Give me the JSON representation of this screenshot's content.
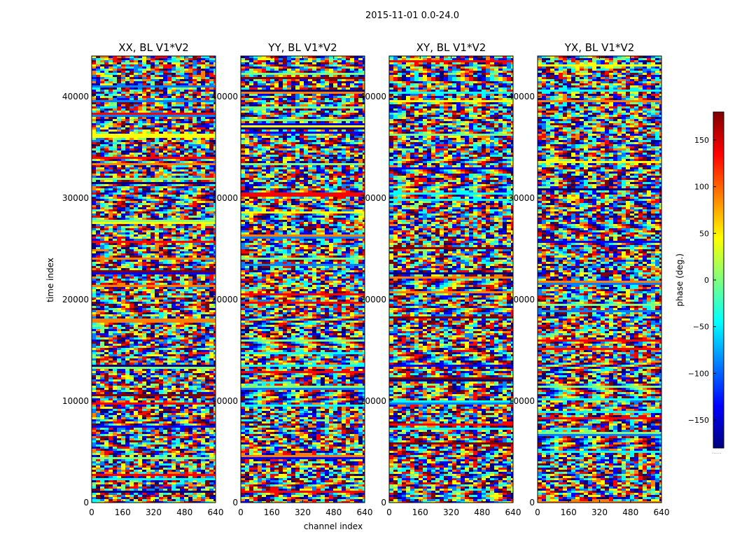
{
  "figure": {
    "suptitle": "2015-11-01 0.0-24.0"
  },
  "chart_data": {
    "type": "heatmap",
    "title": "2015-11-01 0.0-24.0",
    "xlabel": "channel index",
    "ylabel": "time index",
    "xlim": [
      0,
      640
    ],
    "ylim": [
      0,
      44000
    ],
    "x_ticks": [
      0,
      160,
      320,
      480,
      640
    ],
    "x_tick_labels": [
      "0",
      "160",
      "320",
      "480",
      "640"
    ],
    "y_ticks": [
      0,
      10000,
      20000,
      30000,
      40000
    ],
    "y_tick_labels": [
      "0",
      "10000",
      "20000",
      "30000",
      "40000"
    ],
    "panels": [
      {
        "title": "XX, BL V1*V2",
        "y_tick_labels": [
          "0",
          "10000",
          "20000",
          "30000",
          "40000"
        ]
      },
      {
        "title": "YY, BL V1*V2",
        "y_tick_labels": [
          "0",
          "10000",
          "20000",
          "30000",
          "40000"
        ]
      },
      {
        "title": "XY, BL V1*V2",
        "y_tick_labels": [
          "0",
          "10000",
          "20000",
          "30000",
          "40000"
        ]
      },
      {
        "title": "YX, BL V1*V2",
        "y_tick_labels": [
          "0",
          "10000",
          "20000",
          "30000",
          "40000"
        ]
      }
    ],
    "colorbar": {
      "label": "phase (deg.)",
      "range": [
        -180,
        180
      ],
      "ticks": [
        150,
        100,
        50,
        0,
        -50,
        -100,
        -150
      ],
      "tick_labels": [
        "150",
        "100",
        "50",
        "0",
        "−50",
        "−100",
        "−150"
      ],
      "colormap": [
        "#00007f",
        "#0000ff",
        "#007fff",
        "#00ffff",
        "#7fff7f",
        "#ffff00",
        "#ff7f00",
        "#ff0000",
        "#7f0000"
      ],
      "offset_text": "......"
    }
  }
}
